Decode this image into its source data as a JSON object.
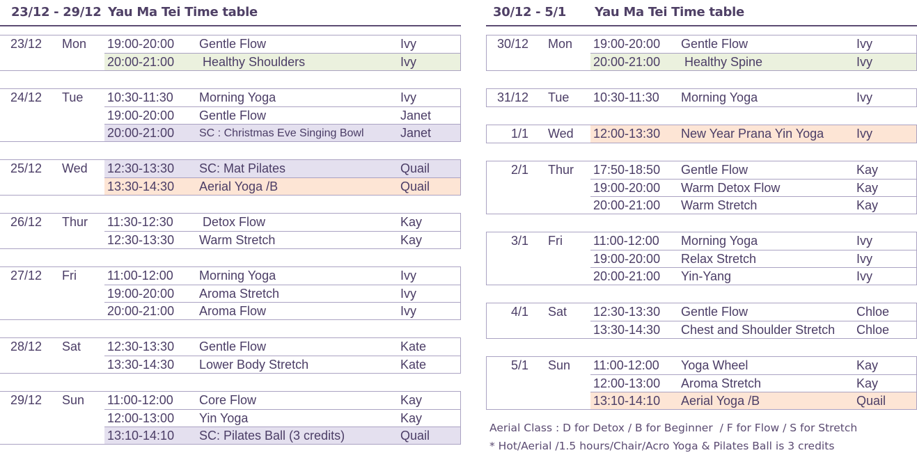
{
  "colors": {
    "lavender": "#e4e0ef",
    "green": "#ebf1de",
    "peach": "#fde5d5",
    "text": "#4b3d66",
    "rule": "#5b4b72"
  },
  "left": {
    "range": "23/12  -  29/12",
    "title": "Yau Ma Tei Time table",
    "days": [
      {
        "date": "23/12",
        "day": "Mon",
        "classes": [
          {
            "time": "19:00-20:00",
            "name": "Gentle Flow",
            "teacher": "Ivy"
          },
          {
            "time": "20:00-21:00",
            "name": " Healthy Shoulders",
            "teacher": "Ivy",
            "highlight": "green"
          }
        ]
      },
      {
        "date": "24/12",
        "day": "Tue",
        "classes": [
          {
            "time": "10:30-11:30",
            "name": "Morning Yoga",
            "teacher": "Ivy"
          },
          {
            "time": "19:00-20:00",
            "name": "Gentle Flow",
            "teacher": "Janet"
          },
          {
            "time": "20:00-21:00",
            "name": "SC : Christmas Eve Singing Bowl",
            "teacher": "Janet",
            "highlight": "lavender",
            "small": true
          }
        ]
      },
      {
        "date": "25/12",
        "day": "Wed",
        "classes": [
          {
            "time": "12:30-13:30",
            "name": "SC: Mat Pilates",
            "teacher": "Quail",
            "highlight": "lavender"
          },
          {
            "time": "13:30-14:30",
            "name": "Aerial Yoga /B",
            "teacher": "Quail",
            "highlight": "peach"
          }
        ]
      },
      {
        "date": "26/12",
        "day": "Thur",
        "classes": [
          {
            "time": "11:30-12:30",
            "name": " Detox Flow",
            "teacher": "Kay"
          },
          {
            "time": "12:30-13:30",
            "name": "Warm Stretch",
            "teacher": "Kay"
          }
        ]
      },
      {
        "date": "27/12",
        "day": "Fri",
        "classes": [
          {
            "time": "11:00-12:00",
            "name": "Morning Yoga",
            "teacher": "Ivy"
          },
          {
            "time": "19:00-20:00",
            "name": "Aroma Stretch",
            "teacher": "Ivy"
          },
          {
            "time": "20:00-21:00",
            "name": "Aroma Flow",
            "teacher": "Ivy"
          }
        ]
      },
      {
        "date": "28/12",
        "day": "Sat",
        "classes": [
          {
            "time": "12:30-13:30",
            "name": "Gentle Flow",
            "teacher": "Kate"
          },
          {
            "time": "13:30-14:30",
            "name": "Lower Body Stretch",
            "teacher": "Kate"
          }
        ]
      },
      {
        "date": "29/12",
        "day": "Sun",
        "classes": [
          {
            "time": "11:00-12:00",
            "name": "Core Flow",
            "teacher": "Kay"
          },
          {
            "time": "12:00-13:00",
            "name": "Yin Yoga",
            "teacher": "Kay"
          },
          {
            "time": "13:10-14:10",
            "name": "SC: Pilates Ball (3 credits)",
            "teacher": "Quail",
            "highlight": "lavender"
          }
        ]
      }
    ]
  },
  "right": {
    "range": "30/12  -  5/1",
    "title": "Yau Ma Tei Time table",
    "days": [
      {
        "date": "30/12",
        "day": "Mon",
        "classes": [
          {
            "time": "19:00-20:00",
            "name": "Gentle Flow",
            "teacher": "Ivy"
          },
          {
            "time": "20:00-21:00",
            "name": " Healthy Spine",
            "teacher": "Ivy",
            "highlight": "green"
          }
        ]
      },
      {
        "date": "31/12",
        "day": "Tue",
        "classes": [
          {
            "time": "10:30-11:30",
            "name": "Morning Yoga",
            "teacher": "Ivy"
          }
        ]
      },
      {
        "date": "1/1",
        "day": "Wed",
        "classes": [
          {
            "time": "12:00-13:30",
            "name": "New Year Prana Yin Yoga",
            "teacher": "Ivy",
            "highlight": "peach"
          }
        ]
      },
      {
        "date": "2/1",
        "day": "Thur",
        "classes": [
          {
            "time": "17:50-18:50",
            "name": "Gentle Flow",
            "teacher": "Kay"
          },
          {
            "time": "19:00-20:00",
            "name": "Warm Detox Flow",
            "teacher": "Kay"
          },
          {
            "time": "20:00-21:00",
            "name": "Warm Stretch",
            "teacher": "Kay"
          }
        ]
      },
      {
        "date": "3/1",
        "day": "Fri",
        "classes": [
          {
            "time": "11:00-12:00",
            "name": "Morning Yoga",
            "teacher": "Ivy"
          },
          {
            "time": "19:00-20:00",
            "name": "Relax Stretch",
            "teacher": "Ivy"
          },
          {
            "time": "20:00-21:00",
            "name": "Yin-Yang",
            "teacher": "Ivy"
          }
        ]
      },
      {
        "date": "4/1",
        "day": "Sat",
        "classes": [
          {
            "time": "12:30-13:30",
            "name": "Gentle Flow",
            "teacher": "Chloe"
          },
          {
            "time": "13:30-14:30",
            "name": "Chest and Shoulder Stretch",
            "teacher": "Chloe"
          }
        ]
      },
      {
        "date": "5/1",
        "day": "Sun",
        "classes": [
          {
            "time": "11:00-12:00",
            "name": "Yoga Wheel",
            "teacher": "Kay"
          },
          {
            "time": "12:00-13:00",
            "name": "Aroma Stretch",
            "teacher": "Kay"
          },
          {
            "time": "13:10-14:10",
            "name": "Aerial Yoga /B",
            "teacher": "Quail",
            "highlight": "peach"
          }
        ]
      }
    ]
  },
  "notes": [
    "Aerial Class : D for Detox / B for Beginner  / F for Flow / S for Stretch",
    "* Hot/Aerial /1.5 hours/Chair/Acro Yoga & Pilates Ball is 3 credits"
  ]
}
